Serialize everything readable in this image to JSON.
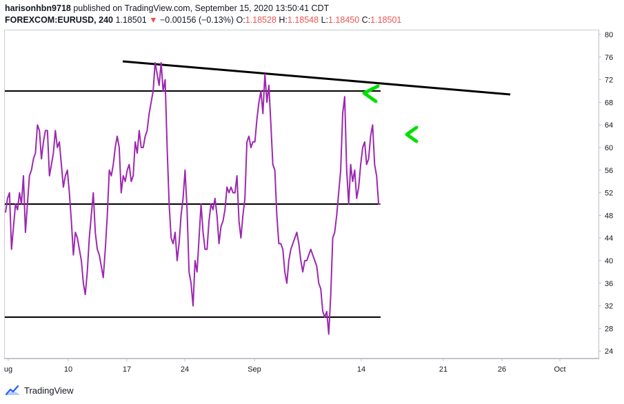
{
  "header": {
    "username": "harisonhbn9718",
    "published": "published on TradingView.com, September 15, 2020 13:50:41 CDT",
    "symbol": "FOREXCOM:EURUSD, 240",
    "last": "1.18501",
    "change": "−0.00156 (−0.13%)",
    "o_label": "O:",
    "o_value": "1.18528",
    "h_label": "H:",
    "h_value": "1.18548",
    "l_label": "L:",
    "l_value": "1.18450",
    "c_label": "C:",
    "c_value": "1.18501"
  },
  "footer": {
    "brand": "TradingView",
    "logo_icon": "tradingview-logo-icon"
  },
  "colors": {
    "series": "#9c27b0",
    "levels": "#000000",
    "arrows": "#00e000",
    "down": "#ef5350"
  },
  "chart_data": {
    "type": "line",
    "y_range": [
      22,
      81
    ],
    "y_ticks": [
      80,
      76,
      72,
      68,
      64,
      60,
      56,
      52,
      48,
      44,
      40,
      36,
      32,
      28,
      24
    ],
    "x_ticks": [
      "ug",
      "10",
      "17",
      "24",
      "Sep",
      "14",
      "21",
      "26",
      "Oct"
    ],
    "grid": false,
    "series": [
      {
        "values": [
          48.5,
          51,
          52,
          42,
          46,
          50,
          49,
          52,
          50,
          55,
          45,
          50,
          55,
          56,
          58,
          59,
          64,
          63,
          58,
          61,
          63,
          63,
          55,
          57,
          59,
          63,
          60,
          61,
          57,
          53,
          55,
          56,
          52,
          47,
          41,
          45,
          44,
          42,
          40,
          36,
          34,
          38,
          44,
          48,
          52,
          45,
          42,
          41,
          39,
          37,
          42,
          48,
          56,
          55,
          57,
          60,
          62,
          60,
          52,
          55,
          54,
          56,
          57,
          54,
          55,
          61,
          59,
          63,
          60,
          60,
          62,
          63,
          66,
          68,
          70,
          75,
          73,
          71,
          75,
          70,
          72,
          60,
          50,
          44,
          43,
          45,
          40,
          43,
          48,
          51,
          56,
          49,
          38,
          36,
          32,
          40,
          38,
          44,
          50,
          45,
          42,
          42,
          47,
          50,
          49,
          51,
          48,
          43,
          46,
          47,
          49,
          53,
          52,
          53,
          52,
          52,
          55,
          47,
          44,
          48,
          51,
          61,
          62,
          60,
          61,
          61,
          65,
          68,
          70,
          66,
          73,
          68,
          71,
          64,
          57,
          56,
          48,
          43,
          43,
          42,
          38,
          36,
          40,
          42,
          43,
          44,
          45,
          43,
          40,
          38,
          40,
          40,
          41,
          42,
          41,
          40,
          39,
          36,
          35,
          31,
          30,
          31,
          27,
          34,
          44,
          45,
          48,
          52,
          56,
          66,
          69,
          56,
          50,
          57,
          54,
          56,
          51,
          53,
          57,
          60,
          61,
          57,
          58,
          62,
          64,
          57,
          55,
          50,
          50
        ]
      }
    ],
    "horizontal_levels": [
      70,
      50,
      30
    ],
    "annotations": {
      "trendline": "descending resistance line",
      "arrows": "two green arrows pointing at resistance"
    }
  }
}
